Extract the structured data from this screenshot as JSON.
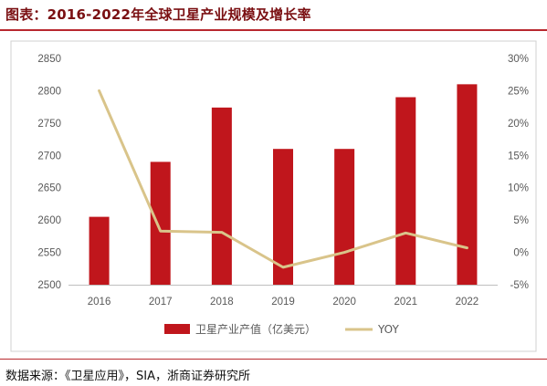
{
  "header": {
    "title": "图表：2016-2022年全球卫星产业规模及增长率"
  },
  "footer": {
    "source": "数据来源：《卫星应用》，SIA，浙商证券研究所"
  },
  "chart_data": {
    "type": "bar+line",
    "categories": [
      "2016",
      "2017",
      "2018",
      "2019",
      "2020",
      "2021",
      "2022"
    ],
    "series": [
      {
        "name": "卫星产业产值（亿美元）",
        "type": "bar",
        "axis": "left",
        "values": [
          2605,
          2690,
          2774,
          2710,
          2710,
          2790,
          2810
        ],
        "color": "#c0161c"
      },
      {
        "name": "YOY",
        "type": "line",
        "axis": "right",
        "values": [
          25.0,
          3.3,
          3.1,
          -2.3,
          0.0,
          3.0,
          0.7
        ],
        "color": "#d9c48a"
      }
    ],
    "y_left": {
      "min": 2500,
      "max": 2850,
      "step": 50,
      "ticks": [
        "2500",
        "2550",
        "2600",
        "2650",
        "2700",
        "2750",
        "2800",
        "2850"
      ]
    },
    "y_right": {
      "min": -5,
      "max": 30,
      "step": 5,
      "ticks": [
        "-5%",
        "0%",
        "5%",
        "10%",
        "15%",
        "20%",
        "25%",
        "30%"
      ]
    },
    "grid": false,
    "legend_position": "bottom"
  }
}
